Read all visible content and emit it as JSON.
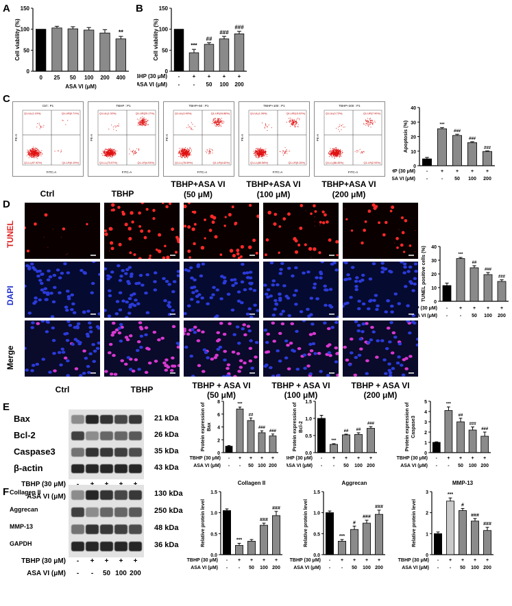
{
  "panels": {
    "A": "A",
    "B": "B",
    "C": "C",
    "D": "D",
    "E": "E",
    "F": "F"
  },
  "panelA": {
    "ylabel": "Cell viability (%)",
    "xlabel": "ASA VI (μM)",
    "yticks": [
      "0",
      "50",
      "100",
      "150"
    ],
    "categories": [
      "0",
      "25",
      "50",
      "100",
      "200",
      "400"
    ],
    "sig": "**"
  },
  "panelB": {
    "ylabel": "Cell viability (%)",
    "yticks": [
      "0",
      "50",
      "100",
      "150"
    ],
    "row1_label": "TBHP (30 μM)",
    "row2_label": "ASA VI (μM)",
    "row1": [
      "-",
      "+",
      "+",
      "+",
      "+"
    ],
    "row2": [
      "-",
      "-",
      "50",
      "100",
      "200"
    ],
    "sig": [
      "",
      "***",
      "##",
      "###",
      "###"
    ]
  },
  "panelC": {
    "plots": [
      {
        "title": "Ctrl : P1",
        "q1": "Q1-UL(1.19%)",
        "q2": "Q1-UR(0.71%)",
        "q3": "Q1-LL(97.92%)",
        "q4": "Q1-LR(0.19%)",
        "label": "Ctrl",
        "label2": ""
      },
      {
        "title": "TBHP : P1",
        "q1": "Q1-UL(1.32%)",
        "q2": "Q1-UR(20.17%)",
        "q3": "Q1-LL(73.57%)",
        "q4": "Q1-LR(4.93%)",
        "label": "TBHP",
        "label2": ""
      },
      {
        "title": "TBHP+50 : P1",
        "q1": "Q1-UL(0.90%)",
        "q2": "Q1-UR(15.88%)",
        "q3": "Q1-LL(78.59%)",
        "q4": "Q1-LR(4.62%)",
        "label": "TBHP+ASA VI",
        "label2": "(50 μM)"
      },
      {
        "title": "TBHP+100 : P1",
        "q1": "Q1-UL(1.26%)",
        "q2": "Q1-UR(13.02%)",
        "q3": "Q1-LL(80.58%)",
        "q4": "Q1-LR(5.15%)",
        "label": "TBHP+ASA VI",
        "label2": "(100 μM)"
      },
      {
        "title": "TBHP+200 : P1",
        "q1": "Q1-UL(0.72%)",
        "q2": "Q1-UR(7.90%)",
        "q3": "Q1-LL(88.45%)",
        "q4": "Q1-LR(2.93%)",
        "label": "TBHP+ASA VI",
        "label2": "(200 μM)"
      }
    ],
    "xaxis": "FITC-A",
    "yaxis": "PE-A"
  },
  "panelD": {
    "rows": [
      "TUNEL",
      "DAPI",
      "Merge"
    ],
    "cols": [
      "Ctrl",
      "TBHP",
      "TBHP + ASA VI",
      "TBHP + ASA VI",
      "TBHP + ASA VI"
    ],
    "cols2": [
      "",
      "",
      "(50 μM)",
      "(100 μM)",
      "(200 μM)"
    ],
    "colors": {
      "tunel": "#ff2a2a",
      "dapi": "#2b3bd9",
      "merge": "#d838d0"
    }
  },
  "panelE": {
    "proteins": [
      "Bax",
      "Bcl-2",
      "Caspase3",
      "β-actin"
    ],
    "kda": [
      "21 kDa",
      "26 kDa",
      "35 kDa",
      "43 kDa"
    ],
    "row1_label": "TBHP (30 μM)",
    "row2_label": "ASA VI (μM)",
    "row1": [
      "-",
      "+",
      "+",
      "+",
      "+"
    ],
    "row2": [
      "-",
      "-",
      "50",
      "100",
      "200"
    ]
  },
  "panelF": {
    "proteins": [
      "Collagen II",
      "Aggrecan",
      "MMP-13",
      "GAPDH"
    ],
    "kda": [
      "130 kDa",
      "250 kDa",
      "48 kDa",
      "36 kDa"
    ],
    "row1_label": "TBHP (30 μM)",
    "row2_label": "ASA VI (μM)",
    "row1": [
      "-",
      "+",
      "+",
      "+",
      "+"
    ],
    "row2": [
      "-",
      "-",
      "50",
      "100",
      "200"
    ]
  },
  "chart_data": [
    {
      "id": "A",
      "type": "bar",
      "categories": [
        "0",
        "25",
        "50",
        "100",
        "200",
        "400"
      ],
      "values": [
        100,
        103,
        101,
        98,
        91,
        77
      ],
      "errors": [
        0,
        4,
        5,
        6,
        8,
        6
      ],
      "ylabel": "Cell viability (%)",
      "xlabel": "ASA VI (μM)",
      "ylim": [
        0,
        150
      ],
      "yticks": [
        0,
        50,
        100,
        150
      ],
      "annotations": [
        "",
        "",
        "",
        "",
        "",
        "**"
      ],
      "colors": [
        "#000000",
        "#8a8a8a",
        "#8a8a8a",
        "#8a8a8a",
        "#8a8a8a",
        "#8a8a8a"
      ]
    },
    {
      "id": "B",
      "type": "bar",
      "values": [
        100,
        44,
        64,
        77,
        89
      ],
      "errors": [
        0,
        8,
        4,
        6,
        6
      ],
      "ylabel": "Cell viability (%)",
      "ylim": [
        0,
        150
      ],
      "yticks": [
        0,
        50,
        100,
        150
      ],
      "annotations": [
        "",
        "***",
        "##",
        "###",
        "###"
      ],
      "colors": [
        "#000000",
        "#8a8a8a",
        "#8a8a8a",
        "#8a8a8a",
        "#8a8a8a"
      ]
    },
    {
      "id": "C",
      "type": "bar",
      "values": [
        4.7,
        25.4,
        20.8,
        15.9,
        9.8
      ],
      "errors": [
        1.0,
        0.8,
        0.8,
        0.6,
        0.4
      ],
      "ylabel": "Apoptosis (%)",
      "ylim": [
        0,
        40
      ],
      "yticks": [
        0,
        10,
        20,
        30,
        40
      ],
      "annotations": [
        "",
        "***",
        "###",
        "###",
        "###"
      ],
      "colors": [
        "#000000",
        "#8a8a8a",
        "#8a8a8a",
        "#8a8a8a",
        "#8a8a8a"
      ]
    },
    {
      "id": "D",
      "type": "bar",
      "values": [
        11.5,
        31.2,
        24.5,
        19.5,
        14.5
      ],
      "errors": [
        1.8,
        0.8,
        1.5,
        1.5,
        1.2
      ],
      "ylabel": "TUNEL positive cells (%)",
      "ylim": [
        0,
        40
      ],
      "yticks": [
        0,
        10,
        20,
        30,
        40
      ],
      "annotations": [
        "",
        "***",
        "##",
        "###",
        "###"
      ],
      "colors": [
        "#000000",
        "#8a8a8a",
        "#8a8a8a",
        "#8a8a8a",
        "#8a8a8a"
      ]
    },
    {
      "id": "E1",
      "type": "bar",
      "values": [
        1.0,
        6.8,
        5.0,
        3.1,
        2.6
      ],
      "errors": [
        0.1,
        0.3,
        0.4,
        0.3,
        0.3
      ],
      "ylabel": "Protein expression of Bax",
      "ylim": [
        0,
        8
      ],
      "yticks": [
        0,
        2,
        4,
        6,
        8
      ],
      "annotations": [
        "",
        "***",
        "##",
        "###",
        "###"
      ],
      "colors": [
        "#000000",
        "#8a8a8a",
        "#8a8a8a",
        "#8a8a8a",
        "#8a8a8a"
      ]
    },
    {
      "id": "E2",
      "type": "bar",
      "values": [
        1.0,
        0.24,
        0.52,
        0.53,
        0.71
      ],
      "errors": [
        0.09,
        0.02,
        0.02,
        0.05,
        0.05
      ],
      "ylabel": "Protein expression of Bcl-2",
      "ylim": [
        0,
        1.5
      ],
      "yticks": [
        0.0,
        0.5,
        1.0,
        1.5
      ],
      "annotations": [
        "",
        "***",
        "##",
        "##",
        "###"
      ],
      "colors": [
        "#000000",
        "#8a8a8a",
        "#8a8a8a",
        "#8a8a8a",
        "#8a8a8a"
      ]
    },
    {
      "id": "E3",
      "type": "bar",
      "values": [
        1.0,
        4.1,
        3.0,
        2.2,
        1.6
      ],
      "errors": [
        0.05,
        0.35,
        0.35,
        0.3,
        0.4
      ],
      "ylabel": "Protein expression of Caspase3",
      "ylim": [
        0,
        5
      ],
      "yticks": [
        0,
        1,
        2,
        3,
        4,
        5
      ],
      "annotations": [
        "",
        "***",
        "##",
        "###",
        "###"
      ],
      "colors": [
        "#000000",
        "#8a8a8a",
        "#8a8a8a",
        "#8a8a8a",
        "#8a8a8a"
      ]
    },
    {
      "id": "F1",
      "type": "bar",
      "title": "Collagen II",
      "values": [
        1.05,
        0.22,
        0.32,
        0.7,
        0.93
      ],
      "errors": [
        0.04,
        0.05,
        0.04,
        0.05,
        0.1
      ],
      "ylabel": "Relative protein level",
      "ylim": [
        0,
        1.5
      ],
      "yticks": [
        0.0,
        0.5,
        1.0,
        1.5
      ],
      "annotations": [
        "",
        "***",
        "",
        "###",
        "###"
      ],
      "colors": [
        "#000000",
        "#8a8a8a",
        "#8a8a8a",
        "#8a8a8a",
        "#8a8a8a"
      ]
    },
    {
      "id": "F2",
      "type": "bar",
      "title": "Aggrecan",
      "values": [
        1.0,
        0.32,
        0.6,
        0.75,
        0.96
      ],
      "errors": [
        0.04,
        0.04,
        0.08,
        0.07,
        0.1
      ],
      "ylabel": "Relative protein level",
      "ylim": [
        0,
        1.5
      ],
      "yticks": [
        0.0,
        0.5,
        1.0,
        1.5
      ],
      "annotations": [
        "",
        "***",
        "#",
        "###",
        "###"
      ],
      "colors": [
        "#000000",
        "#8a8a8a",
        "#8a8a8a",
        "#8a8a8a",
        "#8a8a8a"
      ]
    },
    {
      "id": "F3",
      "type": "bar",
      "title": "MMP-13",
      "values": [
        1.0,
        2.55,
        2.1,
        1.6,
        1.15
      ],
      "errors": [
        0.08,
        0.15,
        0.1,
        0.12,
        0.15
      ],
      "ylabel": "Relative protein level",
      "ylim": [
        0,
        3
      ],
      "yticks": [
        0,
        1,
        2,
        3
      ],
      "annotations": [
        "",
        "***",
        "#",
        "###",
        "###"
      ],
      "colors": [
        "#000000",
        "#c9c9c9",
        "#8a8a8a",
        "#8a8a8a",
        "#8a8a8a"
      ]
    }
  ]
}
